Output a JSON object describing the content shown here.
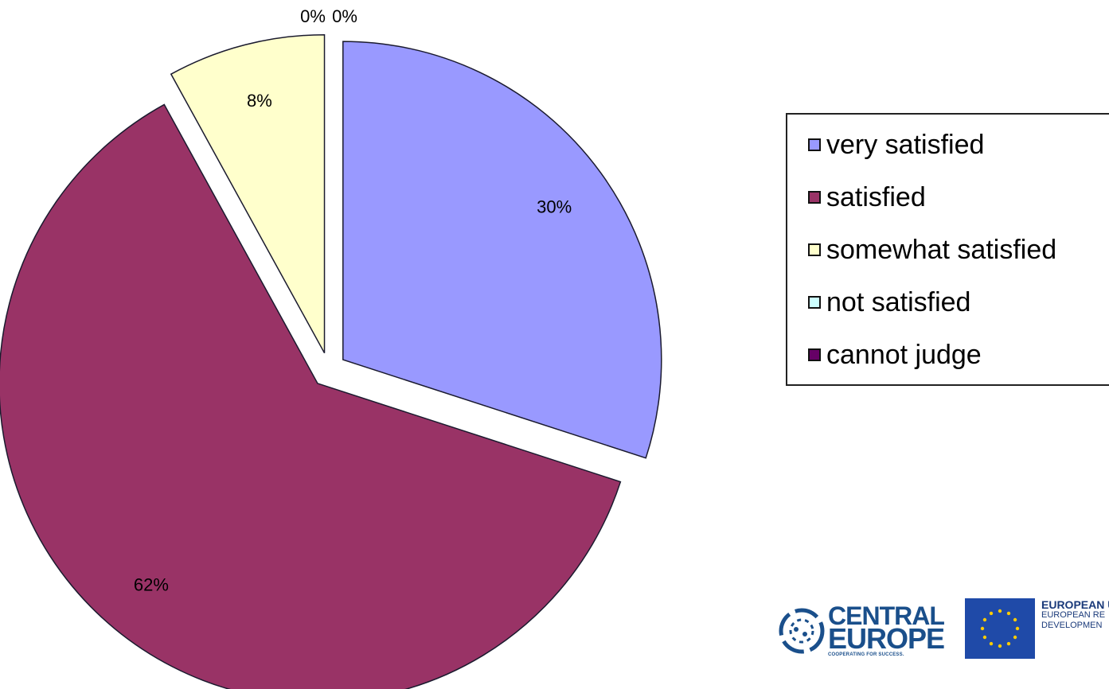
{
  "chart_data": {
    "type": "pie",
    "categories": [
      "very satisfied",
      "satisfied",
      "somewhat satisfied",
      "not satisfied",
      "cannot judge"
    ],
    "values": [
      30,
      62,
      8,
      0,
      0
    ],
    "data_labels": [
      "30%",
      "62%",
      "8%",
      "0%",
      "0%"
    ],
    "colors": [
      "#9999ff",
      "#993366",
      "#ffffcc",
      "#ccffff",
      "#660066"
    ],
    "exploded": true,
    "legend_position": "right"
  },
  "logos": {
    "central_europe": {
      "line1": "CENTRAL",
      "line2": "EUROPE",
      "tagline": "COOPERATING FOR SUCCESS."
    },
    "eu": {
      "line1": "EUROPEAN U",
      "line2": "EUROPEAN RE",
      "line3": "DEVELOPMEN"
    }
  }
}
